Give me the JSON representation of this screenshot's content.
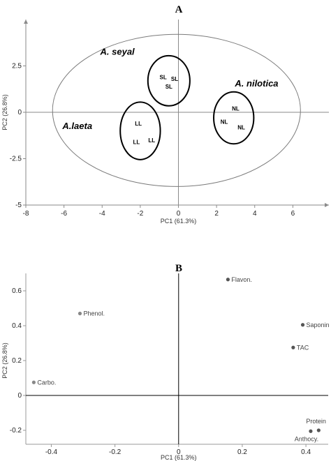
{
  "chart_data": [
    {
      "type": "scatter",
      "panel": "A",
      "xlabel": "PC1 (61.3%)",
      "ylabel": "PC2 (26.8%)",
      "xlim": [
        -8,
        8
      ],
      "ylim": [
        -5,
        5
      ],
      "xticks": [
        -8,
        -6,
        -4,
        -2,
        0,
        2,
        4,
        6
      ],
      "yticks": [
        2.5,
        0,
        -2.5,
        -5
      ],
      "grid": false,
      "points": [
        {
          "label": "SL",
          "x": -0.8,
          "y": 1.9
        },
        {
          "label": "SL",
          "x": -0.2,
          "y": 1.8
        },
        {
          "label": "SL",
          "x": -0.5,
          "y": 1.4
        },
        {
          "label": "LL",
          "x": -2.1,
          "y": -0.6
        },
        {
          "label": "LL",
          "x": -2.2,
          "y": -1.6
        },
        {
          "label": "LL",
          "x": -1.4,
          "y": -1.5
        },
        {
          "label": "NL",
          "x": 3.0,
          "y": 0.2
        },
        {
          "label": "NL",
          "x": 2.4,
          "y": -0.5
        },
        {
          "label": "NL",
          "x": 3.3,
          "y": -0.8
        }
      ],
      "groups": [
        {
          "name": "A. seyal",
          "x": -3.2,
          "y": 3.1
        },
        {
          "name": "A. nilotica",
          "x": 4.1,
          "y": 1.4
        },
        {
          "name": "A.laeta",
          "x": -5.3,
          "y": -0.9
        }
      ],
      "outline_color": "#000000",
      "ellipse_color": "#7a7a7a"
    },
    {
      "type": "scatter",
      "panel": "B",
      "xlabel": "PC1 (61.3%)",
      "ylabel": "PC2 (26.8%)",
      "xlim": [
        -0.48,
        0.47
      ],
      "ylim": [
        -0.28,
        0.7
      ],
      "xticks": [
        -0.4,
        -0.2,
        0,
        0.2,
        0.4
      ],
      "yticks": [
        0.6,
        0.4,
        0.2,
        0,
        -0.2
      ],
      "grid": false,
      "points": [
        {
          "label": "Flavon.",
          "x": 0.155,
          "y": 0.665,
          "color": "#555555"
        },
        {
          "label": "Phenol.",
          "x": -0.31,
          "y": 0.47,
          "color": "#888888"
        },
        {
          "label": "Saponin",
          "x": 0.39,
          "y": 0.405,
          "color": "#555555"
        },
        {
          "label": "TAC",
          "x": 0.36,
          "y": 0.275,
          "color": "#555555"
        },
        {
          "label": "Carbo.",
          "x": -0.455,
          "y": 0.075,
          "color": "#888888"
        },
        {
          "label": "Protein",
          "x": 0.44,
          "y": -0.2,
          "color": "#555555"
        },
        {
          "label": "Anthocy.",
          "x": 0.415,
          "y": -0.205,
          "color": "#555555"
        }
      ]
    }
  ],
  "titles": {
    "a": "A",
    "b": "B"
  }
}
